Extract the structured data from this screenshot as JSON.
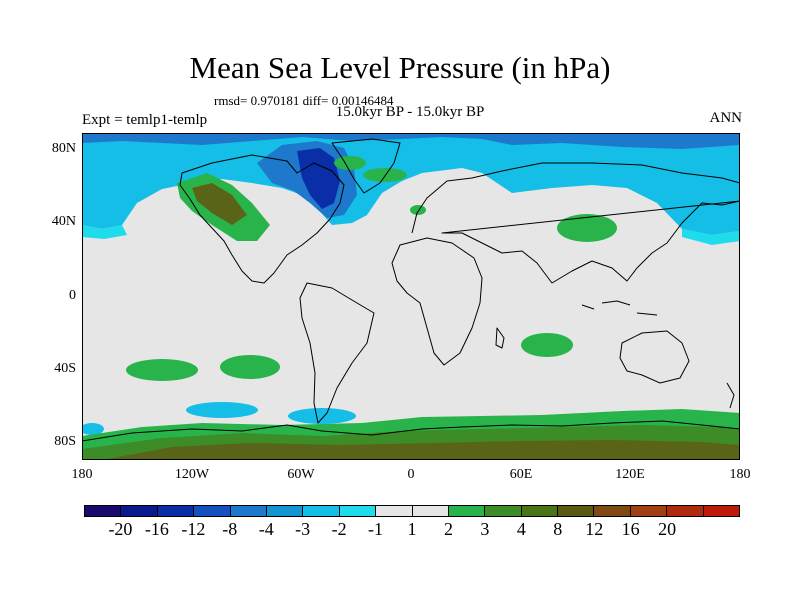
{
  "title": "Mean Sea Level Pressure (in hPa)",
  "stats": "rmsd= 0.970181 diff= 0.00146484",
  "expt": "Expt = temlp1-temlp",
  "period": "15.0kyr BP - 15.0kyr BP",
  "season": "ANN",
  "lat_ticks": [
    "80N",
    "40N",
    "0",
    "40S",
    "80S"
  ],
  "lon_ticks": [
    "180",
    "120W",
    "60W",
    "0",
    "60E",
    "120E",
    "180"
  ],
  "legend": {
    "colors": [
      "#1a0a6e",
      "#0a1a8c",
      "#0a2ea8",
      "#1450c0",
      "#1e78cc",
      "#1496d2",
      "#14bee6",
      "#1edcec",
      "#e6e6e6",
      "#e6e6e6",
      "#28b44a",
      "#3c8c28",
      "#4a7418",
      "#5a5a12",
      "#804a14",
      "#a04014",
      "#b02a0e",
      "#c01a0a"
    ],
    "labels": [
      "-20",
      "-16",
      "-12",
      "-8",
      "-4",
      "-3",
      "-2",
      "-1",
      "1",
      "2",
      "3",
      "4",
      "8",
      "12",
      "16",
      "20"
    ]
  },
  "colors": {
    "neutral": "#e6e6e6",
    "light_cyan": "#18d2ea",
    "cyan": "#14b4e0",
    "blue": "#1e78cc",
    "dark_blue": "#0a2ea8",
    "green": "#28b44a",
    "olive": "#3c8c28",
    "brown": "#5a6418"
  }
}
